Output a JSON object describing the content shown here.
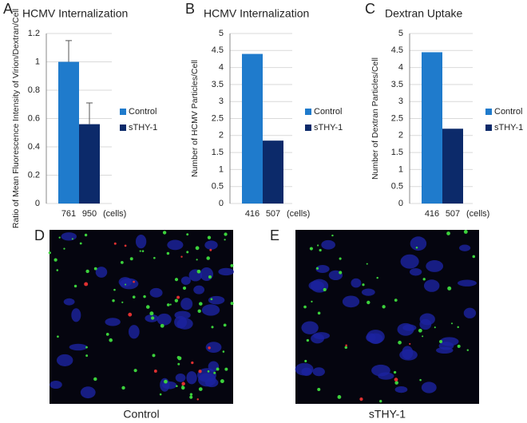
{
  "chart_data": [
    {
      "type": "bar",
      "panel": "A",
      "title": "HCMV Internalization",
      "y_label": "Ratio of Mean Fluorescence Intensity of Virion/Dextran/Cell",
      "x_label": "(cells)",
      "categories": [
        "761",
        "950"
      ],
      "series": [
        {
          "name": "Control",
          "color": "#1f7bcc",
          "values": [
            1,
            null
          ],
          "errors": [
            0.15,
            null
          ]
        },
        {
          "name": "sTHY-1",
          "color": "#0c2a6a",
          "values": [
            null,
            0.56
          ],
          "errors": [
            null,
            0.15
          ]
        }
      ],
      "ylim": [
        0,
        1.2
      ],
      "yticks": [
        0,
        0.2,
        0.4,
        0.6,
        0.8,
        1,
        1.2
      ],
      "grid": true
    },
    {
      "type": "bar",
      "panel": "B",
      "title": "HCMV Internalization",
      "y_label": "Number of HCMV Particles/Cell",
      "x_label": "(cells)",
      "categories": [
        "416",
        "507"
      ],
      "series": [
        {
          "name": "Control",
          "color": "#1f7bcc",
          "values": [
            4.4,
            null
          ]
        },
        {
          "name": "sTHY-1",
          "color": "#0c2a6a",
          "values": [
            null,
            1.85
          ]
        }
      ],
      "ylim": [
        0,
        5
      ],
      "yticks": [
        0,
        0.5,
        1,
        1.5,
        2,
        2.5,
        3,
        3.5,
        4,
        4.5,
        5
      ],
      "grid": true
    },
    {
      "type": "bar",
      "panel": "C",
      "title": "Dextran Uptake",
      "y_label": "Number of Dextran Particles/Cell",
      "x_label": "(cells)",
      "categories": [
        "416",
        "507"
      ],
      "series": [
        {
          "name": "Control",
          "color": "#1f7bcc",
          "values": [
            4.45,
            null
          ]
        },
        {
          "name": "sTHY-1",
          "color": "#0c2a6a",
          "values": [
            null,
            2.2
          ]
        }
      ],
      "ylim": [
        0,
        5
      ],
      "yticks": [
        0,
        0.5,
        1,
        1.5,
        2,
        2.5,
        3,
        3.5,
        4,
        4.5,
        5
      ],
      "grid": true
    }
  ],
  "images": [
    {
      "panel": "D",
      "caption": "Control"
    },
    {
      "panel": "E",
      "caption": "sTHY-1"
    }
  ]
}
